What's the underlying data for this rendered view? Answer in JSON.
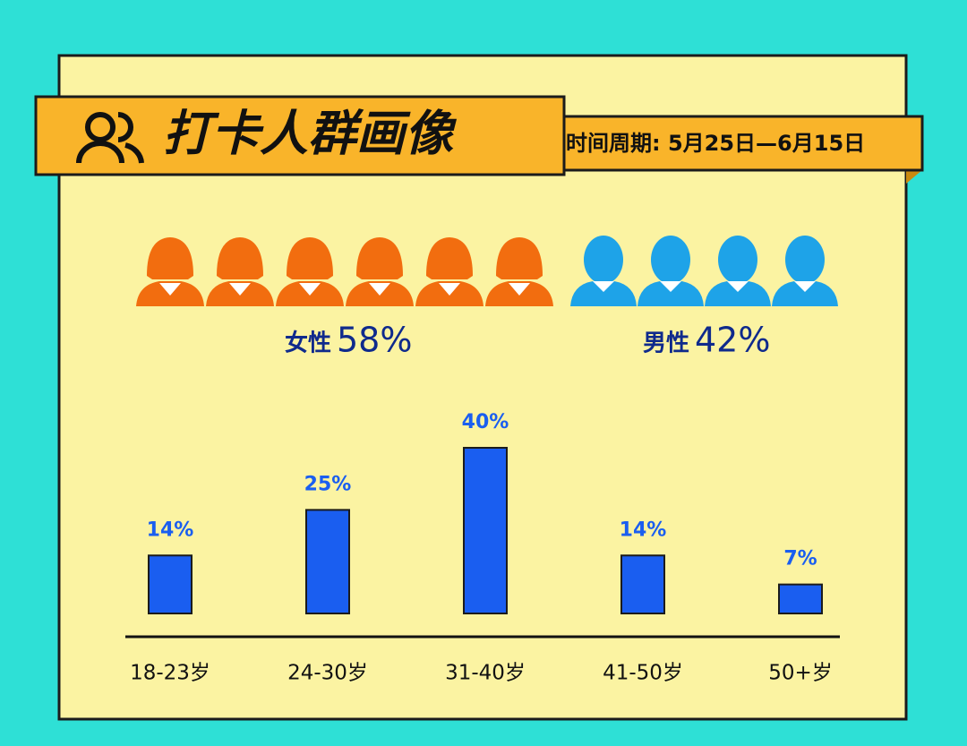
{
  "header": {
    "title": "打卡人群画像",
    "period": "时间周期: 5月25日—6月15日"
  },
  "gender": [
    {
      "label": "女性",
      "value": 58,
      "value_label": "58%",
      "color": "#f26d0f"
    },
    {
      "label": "男性",
      "value": 42,
      "value_label": "42%",
      "color": "#1ea3e8"
    }
  ],
  "chart_data": {
    "type": "bar",
    "categories": [
      "18-23岁",
      "24-30岁",
      "31-40岁",
      "41-50岁",
      "50+岁"
    ],
    "values": [
      14,
      25,
      40,
      14,
      7
    ],
    "value_labels": [
      "14%",
      "25%",
      "40%",
      "14%",
      "7%"
    ],
    "color": "#1a5ef0"
  }
}
